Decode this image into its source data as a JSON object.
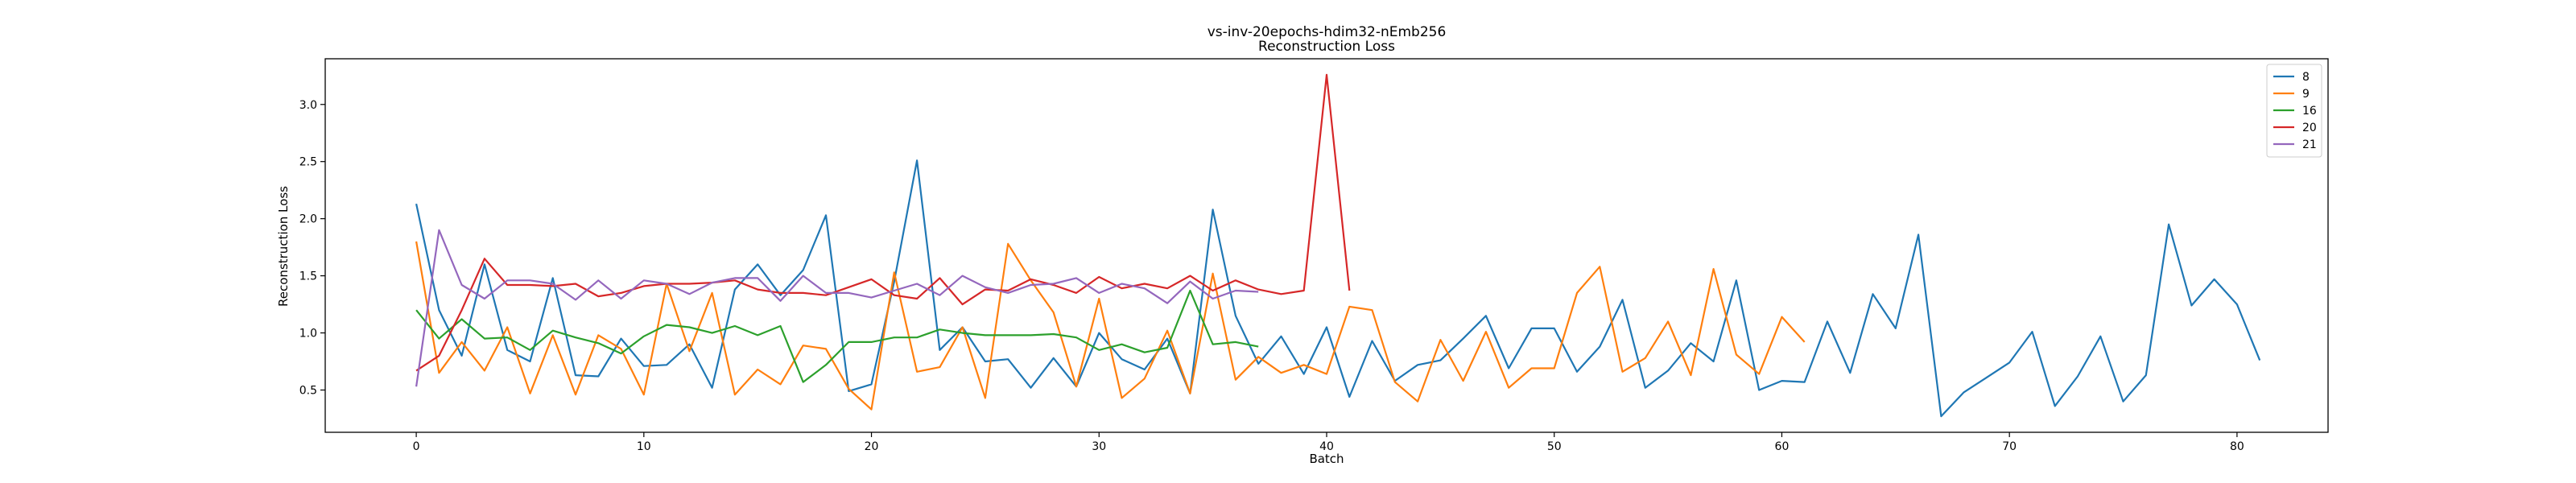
{
  "chart_data": {
    "type": "line",
    "title": "vs-inv-20epochs-hdim32-nEmb256",
    "subtitle": "Reconstruction Loss",
    "xlabel": "Batch",
    "ylabel": "Reconstruction Loss",
    "xlim": [
      -4,
      84
    ],
    "ylim": [
      0.13,
      3.4
    ],
    "xticks": [
      0,
      10,
      20,
      30,
      40,
      50,
      60,
      70,
      80
    ],
    "yticks": [
      0.5,
      1.0,
      1.5,
      2.0,
      2.5,
      3.0
    ],
    "ytick_labels": [
      "0.5",
      "1.0",
      "1.5",
      "2.0",
      "2.5",
      "3.0"
    ],
    "grid": false,
    "legend_position": "top-right",
    "series": [
      {
        "name": "8",
        "color": "#1f77b4",
        "x": [
          0,
          1,
          2,
          3,
          4,
          5,
          6,
          7,
          8,
          9,
          10,
          11,
          12,
          13,
          14,
          15,
          16,
          17,
          18,
          19,
          20,
          21,
          22,
          23,
          24,
          25,
          26,
          27,
          28,
          29,
          30,
          31,
          32,
          33,
          34,
          35,
          36,
          37,
          38,
          39,
          40,
          41,
          42,
          43,
          44,
          45,
          46,
          47,
          48,
          49,
          50,
          51,
          52,
          53,
          54,
          55,
          56,
          57,
          58,
          59,
          60,
          61,
          62,
          63,
          64,
          65,
          66,
          67,
          68,
          69,
          70,
          71,
          72,
          73,
          74,
          75,
          76,
          77,
          78,
          79,
          80,
          81
        ],
        "values": [
          2.13,
          1.2,
          0.8,
          1.6,
          0.85,
          0.75,
          1.48,
          0.63,
          0.62,
          0.95,
          0.71,
          0.72,
          0.9,
          0.52,
          1.38,
          1.6,
          1.33,
          1.55,
          2.03,
          0.49,
          0.55,
          1.45,
          2.51,
          0.85,
          1.05,
          0.75,
          0.77,
          0.52,
          0.78,
          0.53,
          1.0,
          0.77,
          0.68,
          0.95,
          0.47,
          2.08,
          1.15,
          0.73,
          0.97,
          0.64,
          1.05,
          0.44,
          0.93,
          0.58,
          0.72,
          0.76,
          0.95,
          1.15,
          0.69,
          1.04,
          1.04,
          0.66,
          0.88,
          1.29,
          0.52,
          0.67,
          0.91,
          0.75,
          1.46,
          0.5,
          0.58,
          0.57,
          1.1,
          0.65,
          1.34,
          1.04,
          1.86,
          0.27,
          0.48,
          0.61,
          0.74,
          1.01,
          0.36,
          0.62,
          0.97,
          0.4,
          0.63,
          1.95,
          1.24,
          1.47,
          1.25,
          0.76
        ]
      },
      {
        "name": "9",
        "color": "#ff7f0e",
        "x": [
          0,
          1,
          2,
          3,
          4,
          5,
          6,
          7,
          8,
          9,
          10,
          11,
          12,
          13,
          14,
          15,
          16,
          17,
          18,
          19,
          20,
          21,
          22,
          23,
          24,
          25,
          26,
          27,
          28,
          29,
          30,
          31,
          32,
          33,
          34,
          35,
          36,
          37,
          38,
          39,
          40,
          41,
          42,
          43,
          44,
          45,
          46,
          47,
          48,
          49,
          50,
          51,
          52,
          53,
          54,
          55,
          56,
          57,
          58,
          59,
          60,
          61
        ],
        "values": [
          1.8,
          0.65,
          0.92,
          0.67,
          1.05,
          0.47,
          0.98,
          0.46,
          0.98,
          0.86,
          0.46,
          1.43,
          0.84,
          1.35,
          0.46,
          0.68,
          0.55,
          0.89,
          0.86,
          0.51,
          0.33,
          1.53,
          0.66,
          0.7,
          1.05,
          0.43,
          1.78,
          1.46,
          1.18,
          0.53,
          1.3,
          0.43,
          0.6,
          1.02,
          0.47,
          1.52,
          0.59,
          0.79,
          0.65,
          0.72,
          0.64,
          1.23,
          1.2,
          0.57,
          0.4,
          0.94,
          0.58,
          1.01,
          0.52,
          0.69,
          0.69,
          1.35,
          1.58,
          0.66,
          0.78,
          1.1,
          0.63,
          1.56,
          0.81,
          0.64,
          1.14,
          0.92
        ]
      },
      {
        "name": "16",
        "color": "#2ca02c",
        "x": [
          0,
          1,
          2,
          3,
          4,
          5,
          6,
          7,
          8,
          9,
          10,
          11,
          12,
          13,
          14,
          15,
          16,
          17,
          18,
          19,
          20,
          21,
          22,
          23,
          24,
          25,
          26,
          27,
          28,
          29,
          30,
          31,
          32,
          33,
          34,
          35,
          36,
          37
        ],
        "values": [
          1.2,
          0.95,
          1.12,
          0.95,
          0.96,
          0.85,
          1.02,
          0.96,
          0.91,
          0.82,
          0.97,
          1.07,
          1.05,
          1.0,
          1.06,
          0.98,
          1.06,
          0.57,
          0.72,
          0.92,
          0.92,
          0.96,
          0.96,
          1.03,
          1.0,
          0.98,
          0.98,
          0.98,
          0.99,
          0.96,
          0.85,
          0.9,
          0.83,
          0.87,
          1.37,
          0.9,
          0.92,
          0.88
        ]
      },
      {
        "name": "20",
        "color": "#d62728",
        "x": [
          0,
          1,
          2,
          3,
          4,
          5,
          6,
          7,
          8,
          9,
          10,
          11,
          12,
          13,
          14,
          15,
          16,
          17,
          18,
          19,
          20,
          21,
          22,
          23,
          24,
          25,
          26,
          27,
          28,
          29,
          30,
          31,
          32,
          33,
          34,
          35,
          36,
          37,
          38,
          39,
          40,
          41
        ],
        "values": [
          0.67,
          0.8,
          1.2,
          1.65,
          1.42,
          1.42,
          1.41,
          1.43,
          1.32,
          1.35,
          1.41,
          1.43,
          1.43,
          1.44,
          1.46,
          1.38,
          1.35,
          1.35,
          1.33,
          1.4,
          1.47,
          1.33,
          1.3,
          1.48,
          1.25,
          1.38,
          1.37,
          1.47,
          1.42,
          1.35,
          1.49,
          1.39,
          1.43,
          1.39,
          1.5,
          1.37,
          1.46,
          1.38,
          1.34,
          1.37,
          3.26,
          1.37
        ]
      },
      {
        "name": "21",
        "color": "#9467bd",
        "x": [
          0,
          1,
          2,
          3,
          4,
          5,
          6,
          7,
          8,
          9,
          10,
          11,
          12,
          13,
          14,
          15,
          16,
          17,
          18,
          19,
          20,
          21,
          22,
          23,
          24,
          25,
          26,
          27,
          28,
          29,
          30,
          31,
          32,
          33,
          34,
          35,
          36,
          37
        ],
        "values": [
          0.53,
          1.9,
          1.42,
          1.3,
          1.46,
          1.46,
          1.43,
          1.29,
          1.46,
          1.3,
          1.46,
          1.43,
          1.34,
          1.44,
          1.48,
          1.48,
          1.28,
          1.5,
          1.35,
          1.35,
          1.31,
          1.37,
          1.43,
          1.33,
          1.5,
          1.4,
          1.35,
          1.42,
          1.43,
          1.48,
          1.35,
          1.43,
          1.39,
          1.26,
          1.45,
          1.3,
          1.37,
          1.36
        ]
      }
    ]
  }
}
